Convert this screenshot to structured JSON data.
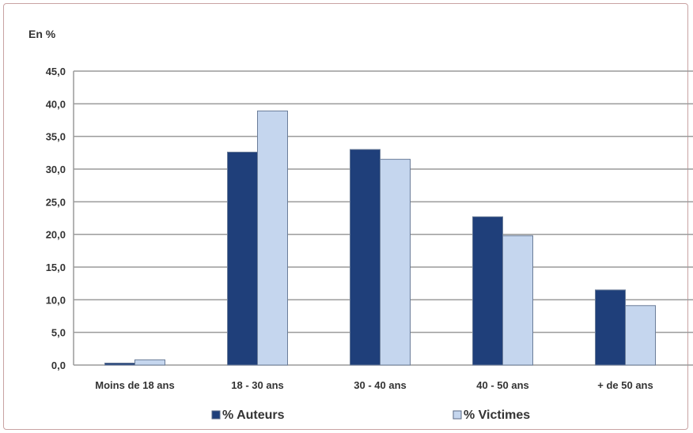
{
  "chart_data": {
    "type": "bar",
    "ylabel": "En %",
    "categories": [
      "Moins de 18 ans",
      "18 - 30 ans",
      "30 - 40 ans",
      "40 - 50 ans",
      "+ de 50 ans"
    ],
    "series": [
      {
        "name": "% Auteurs",
        "values": [
          0.3,
          32.6,
          33.0,
          22.7,
          11.5
        ],
        "color": "#1f3f7a"
      },
      {
        "name": "% Victimes",
        "values": [
          0.8,
          38.9,
          31.5,
          19.8,
          9.1
        ],
        "color": "#c5d6ee"
      }
    ],
    "ylim": [
      0,
      45
    ],
    "yticks": [
      "0,0",
      "5,0",
      "10,0",
      "15,0",
      "20,0",
      "25,0",
      "30,0",
      "35,0",
      "40,0",
      "45,0"
    ],
    "grid": true,
    "legend_position": "bottom"
  }
}
